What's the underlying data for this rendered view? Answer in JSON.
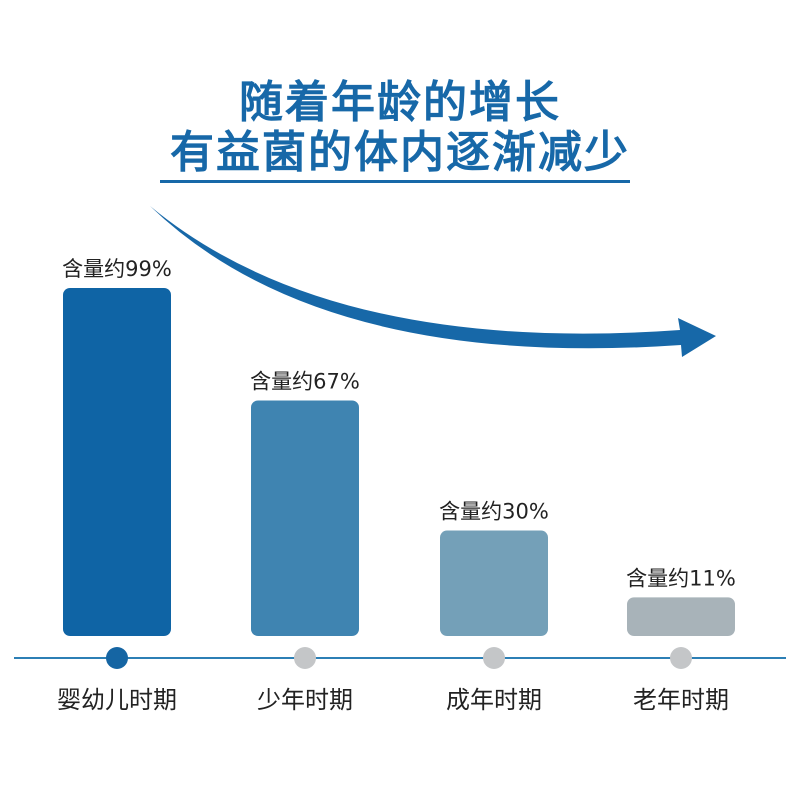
{
  "title_line1": "随着年龄的增长",
  "title_line2": "有益菌的体内逐渐减少",
  "colors": {
    "title": "#1768a8",
    "arrow": "#1768a8",
    "axis": "#2c7fb5",
    "dot_active": "#1565a3",
    "dot_inactive": "#c4c6c8",
    "bars": [
      "#0f64a5",
      "#3f84b1",
      "#74a0b8",
      "#a8b3b9"
    ]
  },
  "chart_data": {
    "type": "bar",
    "categories": [
      "婴幼儿时期",
      "少年时期",
      "成年时期",
      "老年时期"
    ],
    "values": [
      99,
      67,
      30,
      11
    ],
    "data_labels": [
      "含量约99%",
      "含量约67%",
      "含量约30%",
      "含量约11%"
    ],
    "active_index": 0
  }
}
